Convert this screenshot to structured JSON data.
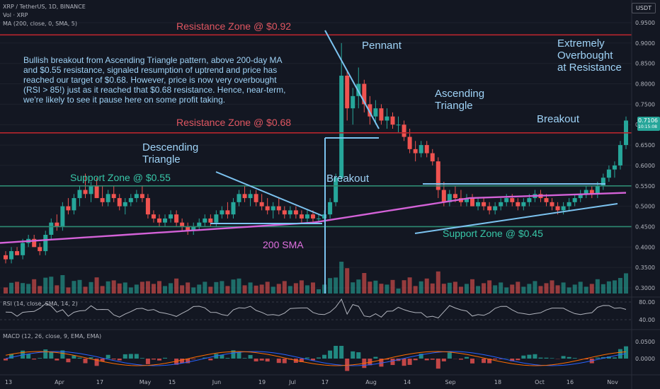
{
  "header": {
    "title": "XRP / TetherUS, 1D, BINANCE",
    "vol": "Vol · XRP",
    "ma": "MA (200, close, 0, SMA, 5)",
    "currency": "USDT",
    "price": "0.7106",
    "countdown": "10:15:08"
  },
  "rsi_label": "RSI (14, close, SMA, 14, 2)",
  "macd_label": "MACD (12, 26, close, 9, EMA, EMA)",
  "annotations": {
    "resistance_high": "Resistance Zone @ $0.92",
    "resistance_mid": "Resistance Zone @ $0.68",
    "support_55": "Support Zone @ $0.55",
    "support_45": "Support Zone @ $0.45",
    "sma_label": "200 SMA",
    "pennant": "Pennant",
    "descending_1": "Descending",
    "descending_2": "Triangle",
    "ascending_1": "Ascending",
    "ascending_2": "Triangle",
    "breakout_1": "Breakout",
    "breakout_2": "Breakout",
    "overbought_1": "Extremely",
    "overbought_2": "Overbought",
    "overbought_3": "at Resistance",
    "note_1": "Bullish breakout from Ascending Triangle pattern, above 200-day MA",
    "note_2": "and $0.55 resistance, signaled resumption of uptrend and price has",
    "note_3": "reached our target of $0.68. However, price is now very overbought",
    "note_4": "(RSI > 85!) just as it reached that $0.68 resistance. Hence, near-term,",
    "note_5": "we're likely to see it pause here on some profit taking."
  },
  "colors": {
    "background": "#131722",
    "up": "#26a69a",
    "down": "#ef5350",
    "resistance": "#b7252d",
    "support": "#2e8b72",
    "sma": "#d462d8",
    "trendline": "#7cc3f0",
    "macd": "#2962ff",
    "signal": "#ff6d00"
  },
  "chart_data": {
    "type": "candlestick",
    "price_ticks": [
      "0.9500",
      "0.9000",
      "0.8500",
      "0.8000",
      "0.7500",
      "0.7000",
      "0.6500",
      "0.6000",
      "0.5500",
      "0.5000",
      "0.4500",
      "0.4000",
      "0.3500",
      "0.3000"
    ],
    "x_ticks": [
      "13",
      "Apr",
      "17",
      "May",
      "15",
      "Jun",
      "19",
      "Jul",
      "17",
      "Aug",
      "14",
      "Sep",
      "18",
      "Oct",
      "16",
      "Nov"
    ],
    "rsi_ticks": [
      "80.00",
      "40.00"
    ],
    "macd_ticks": [
      "0.0500",
      "0.0000"
    ],
    "levels": {
      "resistance": [
        0.92,
        0.68
      ],
      "support": [
        0.55,
        0.45
      ]
    },
    "candles_ohlc": [
      [
        0.38,
        0.39,
        0.36,
        0.37
      ],
      [
        0.37,
        0.4,
        0.36,
        0.39
      ],
      [
        0.39,
        0.4,
        0.38,
        0.38
      ],
      [
        0.38,
        0.42,
        0.37,
        0.41
      ],
      [
        0.41,
        0.43,
        0.4,
        0.42
      ],
      [
        0.42,
        0.43,
        0.4,
        0.4
      ],
      [
        0.4,
        0.41,
        0.38,
        0.39
      ],
      [
        0.39,
        0.44,
        0.38,
        0.43
      ],
      [
        0.43,
        0.47,
        0.42,
        0.46
      ],
      [
        0.46,
        0.48,
        0.44,
        0.45
      ],
      [
        0.45,
        0.51,
        0.44,
        0.5
      ],
      [
        0.5,
        0.52,
        0.48,
        0.49
      ],
      [
        0.49,
        0.53,
        0.48,
        0.52
      ],
      [
        0.52,
        0.55,
        0.5,
        0.54
      ],
      [
        0.54,
        0.58,
        0.52,
        0.53
      ],
      [
        0.53,
        0.56,
        0.51,
        0.55
      ],
      [
        0.55,
        0.57,
        0.52,
        0.52
      ],
      [
        0.52,
        0.55,
        0.5,
        0.51
      ],
      [
        0.51,
        0.54,
        0.5,
        0.53
      ],
      [
        0.53,
        0.55,
        0.51,
        0.52
      ],
      [
        0.52,
        0.53,
        0.49,
        0.5
      ],
      [
        0.5,
        0.52,
        0.48,
        0.51
      ],
      [
        0.51,
        0.53,
        0.5,
        0.52
      ],
      [
        0.52,
        0.54,
        0.51,
        0.53
      ],
      [
        0.53,
        0.55,
        0.51,
        0.52
      ],
      [
        0.52,
        0.53,
        0.47,
        0.48
      ],
      [
        0.48,
        0.49,
        0.46,
        0.47
      ],
      [
        0.47,
        0.48,
        0.45,
        0.46
      ],
      [
        0.46,
        0.48,
        0.45,
        0.47
      ],
      [
        0.47,
        0.49,
        0.46,
        0.48
      ],
      [
        0.48,
        0.49,
        0.45,
        0.46
      ],
      [
        0.46,
        0.47,
        0.44,
        0.45
      ],
      [
        0.45,
        0.46,
        0.43,
        0.44
      ],
      [
        0.44,
        0.46,
        0.43,
        0.45
      ],
      [
        0.45,
        0.47,
        0.44,
        0.46
      ],
      [
        0.46,
        0.48,
        0.45,
        0.47
      ],
      [
        0.47,
        0.48,
        0.45,
        0.46
      ],
      [
        0.46,
        0.49,
        0.45,
        0.48
      ],
      [
        0.48,
        0.5,
        0.47,
        0.49
      ],
      [
        0.49,
        0.51,
        0.47,
        0.48
      ],
      [
        0.48,
        0.52,
        0.47,
        0.51
      ],
      [
        0.51,
        0.54,
        0.5,
        0.53
      ],
      [
        0.53,
        0.55,
        0.51,
        0.52
      ],
      [
        0.52,
        0.54,
        0.5,
        0.53
      ],
      [
        0.53,
        0.54,
        0.5,
        0.51
      ],
      [
        0.51,
        0.53,
        0.49,
        0.5
      ],
      [
        0.5,
        0.52,
        0.48,
        0.49
      ],
      [
        0.49,
        0.51,
        0.47,
        0.5
      ],
      [
        0.5,
        0.52,
        0.48,
        0.49
      ],
      [
        0.49,
        0.5,
        0.47,
        0.48
      ],
      [
        0.48,
        0.5,
        0.47,
        0.49
      ],
      [
        0.49,
        0.5,
        0.47,
        0.48
      ],
      [
        0.48,
        0.49,
        0.46,
        0.47
      ],
      [
        0.47,
        0.49,
        0.46,
        0.48
      ],
      [
        0.48,
        0.49,
        0.46,
        0.47
      ],
      [
        0.47,
        0.48,
        0.46,
        0.47
      ],
      [
        0.47,
        0.49,
        0.46,
        0.48
      ],
      [
        0.48,
        0.52,
        0.47,
        0.51
      ],
      [
        0.51,
        0.58,
        0.5,
        0.57
      ],
      [
        0.57,
        0.9,
        0.56,
        0.82
      ],
      [
        0.82,
        0.83,
        0.71,
        0.74
      ],
      [
        0.74,
        0.79,
        0.7,
        0.77
      ],
      [
        0.77,
        0.84,
        0.74,
        0.8
      ],
      [
        0.8,
        0.81,
        0.73,
        0.75
      ],
      [
        0.75,
        0.77,
        0.7,
        0.72
      ],
      [
        0.72,
        0.76,
        0.7,
        0.74
      ],
      [
        0.74,
        0.75,
        0.7,
        0.71
      ],
      [
        0.71,
        0.74,
        0.69,
        0.72
      ],
      [
        0.72,
        0.73,
        0.69,
        0.7
      ],
      [
        0.7,
        0.72,
        0.68,
        0.7
      ],
      [
        0.7,
        0.71,
        0.66,
        0.67
      ],
      [
        0.67,
        0.69,
        0.63,
        0.64
      ],
      [
        0.64,
        0.66,
        0.61,
        0.63
      ],
      [
        0.63,
        0.66,
        0.62,
        0.65
      ],
      [
        0.65,
        0.66,
        0.62,
        0.63
      ],
      [
        0.63,
        0.64,
        0.6,
        0.61
      ],
      [
        0.61,
        0.62,
        0.52,
        0.54
      ],
      [
        0.54,
        0.56,
        0.5,
        0.51
      ],
      [
        0.51,
        0.54,
        0.5,
        0.53
      ],
      [
        0.53,
        0.55,
        0.51,
        0.52
      ],
      [
        0.52,
        0.54,
        0.5,
        0.51
      ],
      [
        0.51,
        0.53,
        0.5,
        0.52
      ],
      [
        0.52,
        0.53,
        0.5,
        0.5
      ],
      [
        0.5,
        0.52,
        0.49,
        0.51
      ],
      [
        0.51,
        0.52,
        0.49,
        0.5
      ],
      [
        0.5,
        0.51,
        0.48,
        0.49
      ],
      [
        0.49,
        0.51,
        0.48,
        0.5
      ],
      [
        0.5,
        0.52,
        0.49,
        0.51
      ],
      [
        0.51,
        0.53,
        0.5,
        0.52
      ],
      [
        0.52,
        0.53,
        0.5,
        0.51
      ],
      [
        0.51,
        0.52,
        0.49,
        0.5
      ],
      [
        0.5,
        0.52,
        0.49,
        0.51
      ],
      [
        0.51,
        0.53,
        0.5,
        0.52
      ],
      [
        0.52,
        0.54,
        0.51,
        0.53
      ],
      [
        0.53,
        0.54,
        0.51,
        0.52
      ],
      [
        0.52,
        0.53,
        0.5,
        0.51
      ],
      [
        0.51,
        0.52,
        0.49,
        0.5
      ],
      [
        0.5,
        0.51,
        0.48,
        0.49
      ],
      [
        0.49,
        0.51,
        0.48,
        0.5
      ],
      [
        0.5,
        0.52,
        0.49,
        0.51
      ],
      [
        0.51,
        0.53,
        0.5,
        0.52
      ],
      [
        0.52,
        0.54,
        0.51,
        0.53
      ],
      [
        0.53,
        0.55,
        0.52,
        0.54
      ],
      [
        0.54,
        0.55,
        0.52,
        0.53
      ],
      [
        0.53,
        0.56,
        0.52,
        0.55
      ],
      [
        0.55,
        0.58,
        0.54,
        0.57
      ],
      [
        0.57,
        0.6,
        0.56,
        0.59
      ],
      [
        0.59,
        0.61,
        0.57,
        0.6
      ],
      [
        0.6,
        0.66,
        0.59,
        0.65
      ],
      [
        0.65,
        0.72,
        0.64,
        0.71
      ]
    ]
  }
}
